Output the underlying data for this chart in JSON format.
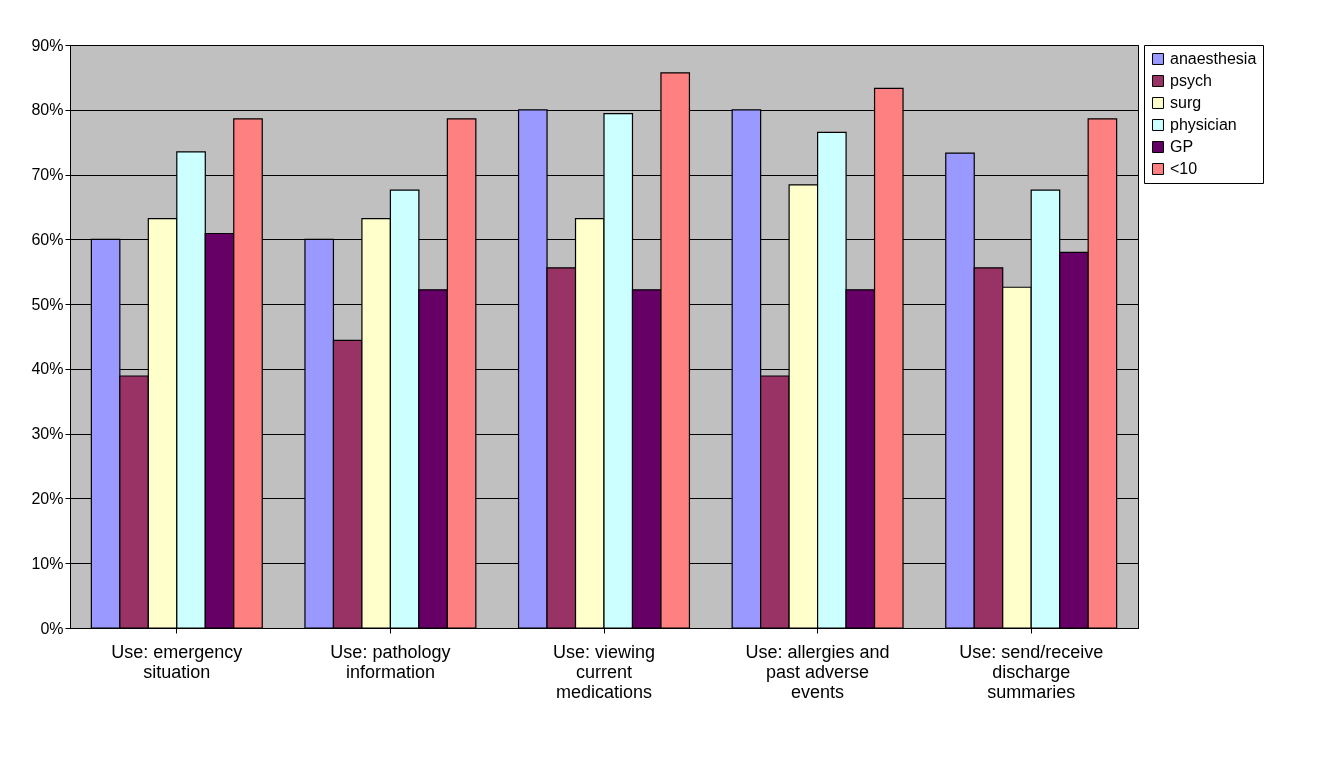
{
  "chart_data": {
    "type": "bar",
    "categories": [
      "Use: emergency situation",
      "Use: pathology information",
      "Use: viewing current medications",
      "Use: allergies and past adverse events",
      "Use: send/receive discharge summaries"
    ],
    "series": [
      {
        "name": "anaesthesia",
        "color": "#9999ff",
        "values": [
          60,
          60,
          80,
          80,
          73.3
        ]
      },
      {
        "name": "psych",
        "color": "#993366",
        "values": [
          38.9,
          44.4,
          55.6,
          38.9,
          55.6
        ]
      },
      {
        "name": "surg",
        "color": "#ffffcc",
        "values": [
          63.2,
          63.2,
          63.2,
          68.4,
          52.6
        ]
      },
      {
        "name": "physician",
        "color": "#ccffff",
        "values": [
          73.5,
          67.6,
          79.4,
          76.5,
          67.6
        ]
      },
      {
        "name": "GP",
        "color": "#660066",
        "values": [
          60.9,
          52.2,
          52.2,
          52.2,
          58
        ]
      },
      {
        "name": "<10",
        "color": "#ff8080",
        "values": [
          78.6,
          78.6,
          85.7,
          83.3,
          78.6
        ]
      }
    ],
    "ylim": [
      0,
      90
    ],
    "yticks": [
      {
        "value": 0,
        "label": "0%"
      },
      {
        "value": 10,
        "label": "10%"
      },
      {
        "value": 20,
        "label": "20%"
      },
      {
        "value": 30,
        "label": "30%"
      },
      {
        "value": 40,
        "label": "40%"
      },
      {
        "value": 50,
        "label": "50%"
      },
      {
        "value": 60,
        "label": "60%"
      },
      {
        "value": 70,
        "label": "70%"
      },
      {
        "value": 80,
        "label": "80%"
      },
      {
        "value": 90,
        "label": "90%"
      }
    ],
    "grid": "y",
    "legend": "right"
  }
}
